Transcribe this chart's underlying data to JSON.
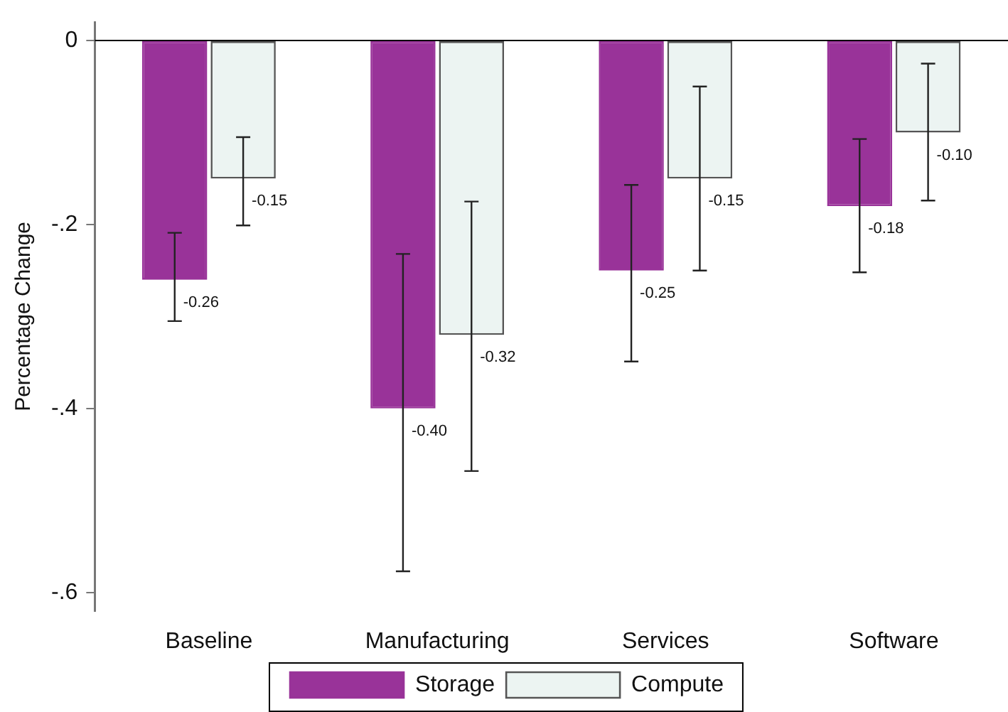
{
  "chart_data": {
    "type": "bar",
    "ylabel": "Percentage Change",
    "categories": [
      "Baseline",
      "Manufacturing",
      "Services",
      "Software"
    ],
    "series": [
      {
        "name": "Storage",
        "color": "#993399",
        "values": [
          -0.26,
          -0.4,
          -0.25,
          -0.18
        ],
        "value_labels": [
          "-0.26",
          "-0.40",
          "-0.25",
          "-0.18"
        ],
        "errors": [
          [
            -0.305,
            -0.209
          ],
          [
            -0.577,
            -0.232
          ],
          [
            -0.349,
            -0.157
          ],
          [
            -0.252,
            -0.107
          ]
        ]
      },
      {
        "name": "Compute",
        "color": "#ecf4f2",
        "values": [
          -0.15,
          -0.32,
          -0.15,
          -0.1
        ],
        "value_labels": [
          "-0.15",
          "-0.32",
          "-0.15",
          "-0.10"
        ],
        "errors": [
          [
            -0.201,
            -0.105
          ],
          [
            -0.468,
            -0.175
          ],
          [
            -0.25,
            -0.05
          ],
          [
            -0.174,
            -0.025
          ]
        ]
      }
    ],
    "ylim": [
      -0.62,
      0.02
    ],
    "yticks": [
      {
        "value": 0,
        "label": "0"
      },
      {
        "value": -0.2,
        "label": "-.2"
      },
      {
        "value": -0.4,
        "label": "-.4"
      },
      {
        "value": -0.6,
        "label": "-.6"
      }
    ],
    "ref_lines": [
      {
        "axis": "y",
        "value": 0,
        "color": "#000000"
      }
    ],
    "grid": false,
    "legend": "bottom"
  }
}
